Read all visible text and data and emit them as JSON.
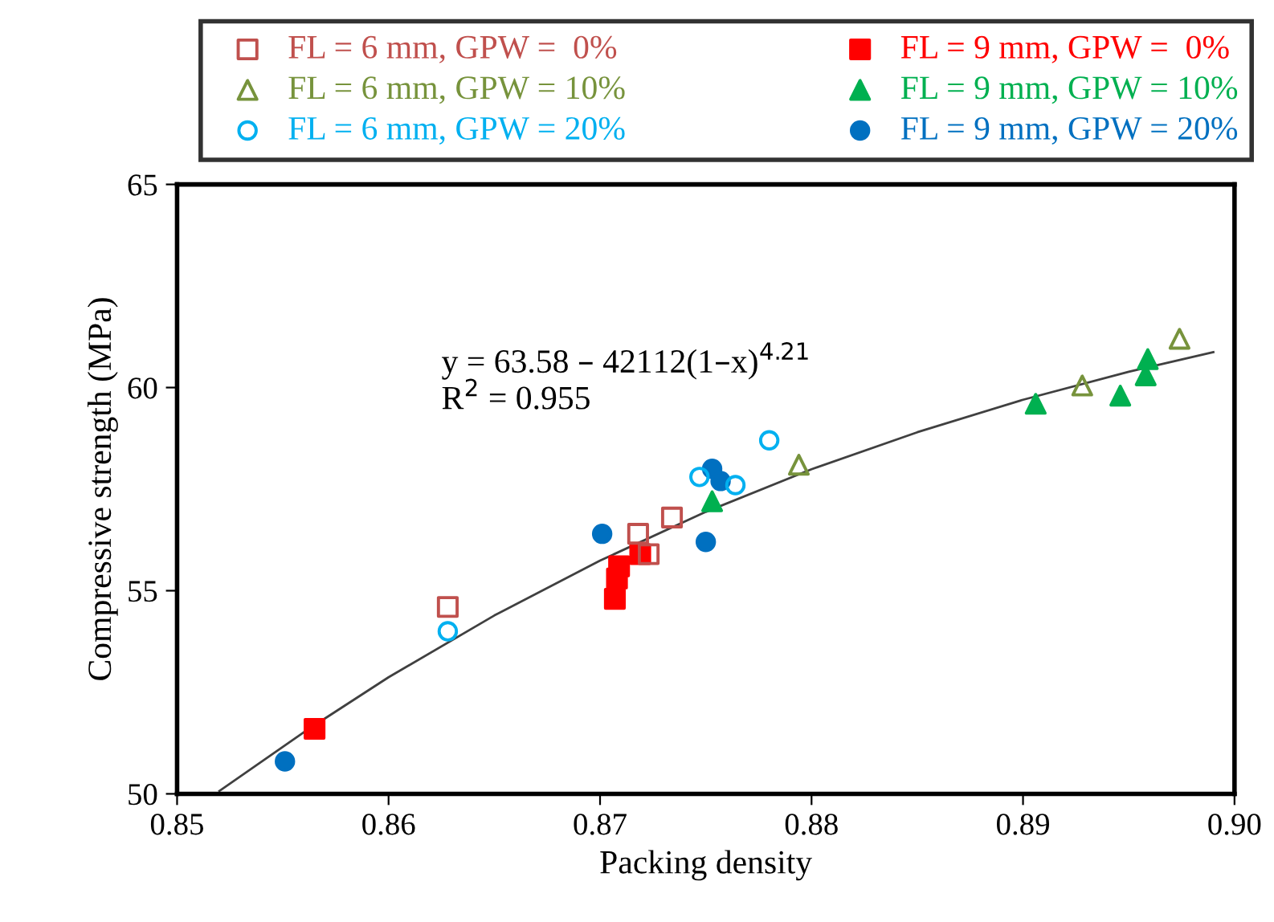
{
  "chart_data": {
    "type": "scatter",
    "xlabel": "Packing density",
    "ylabel": "Compressive strength (MPa)",
    "xlim": [
      0.85,
      0.9
    ],
    "xticks": [
      {
        "value": 0.85,
        "label": "0.85"
      },
      {
        "value": 0.86,
        "label": "0.86"
      },
      {
        "value": 0.87,
        "label": "0.87"
      },
      {
        "value": 0.88,
        "label": "0.88"
      },
      {
        "value": 0.89,
        "label": "0.89"
      },
      {
        "value": 0.9,
        "label": "0.90"
      }
    ],
    "ylim": [
      50,
      65
    ],
    "yticks": [
      50,
      55,
      60,
      65
    ],
    "grid": false,
    "legend": "top",
    "annotations": [
      "y = 63.58 – 42112(1–x)$^{4.21}$",
      "R$^{2}$ = 0.955"
    ],
    "series": [
      {
        "name": "FL = 6 mm, GPW =  0%",
        "color": "#c0504d",
        "marker": "square",
        "x": [
          0.8628,
          0.8718,
          0.8734,
          0.8723
        ],
        "values": [
          54.6,
          56.4,
          56.8,
          55.9
        ]
      },
      {
        "name": "FL = 6 mm, GPW = 10%",
        "color": "#77933c",
        "marker": "triangle",
        "x": [
          0.8794,
          0.8928,
          0.8974
        ],
        "values": [
          58.1,
          60.05,
          61.2
        ]
      },
      {
        "name": "FL = 6 mm, GPW = 20%",
        "color": "#00b0f0",
        "marker": "circle",
        "x": [
          0.8628,
          0.8747,
          0.8764,
          0.878
        ],
        "values": [
          54.0,
          57.8,
          57.6,
          58.7
        ]
      },
      {
        "name": "FL = 9 mm, GPW =  0%",
        "color": "#ff0000",
        "marker": "square",
        "x": [
          0.8565,
          0.8709,
          0.8708,
          0.8707,
          0.8719
        ],
        "values": [
          51.6,
          55.6,
          55.3,
          54.8,
          55.9
        ]
      },
      {
        "name": "FL = 9 mm, GPW = 10%",
        "color": "#00b050",
        "marker": "triangle",
        "x": [
          0.8753,
          0.8906,
          0.8946,
          0.8958,
          0.8959
        ],
        "values": [
          57.2,
          59.6,
          59.8,
          60.3,
          60.7
        ]
      },
      {
        "name": "FL = 9 mm, GPW = 20%",
        "color": "#0070c0",
        "marker": "circle",
        "x": [
          0.8551,
          0.8701,
          0.8753,
          0.8757,
          0.875
        ],
        "values": [
          50.8,
          56.4,
          58.0,
          57.7,
          56.2
        ]
      },
      {
        "type": "line",
        "color": "#404040",
        "marker": "none",
        "x": [
          0.852,
          0.856,
          0.86,
          0.865,
          0.87,
          0.875,
          0.88,
          0.885,
          0.89,
          0.895,
          0.899
        ],
        "values": [
          50.07,
          51.52,
          52.87,
          54.39,
          55.74,
          56.94,
          57.99,
          58.9,
          59.7,
          60.39,
          60.87
        ]
      }
    ]
  }
}
